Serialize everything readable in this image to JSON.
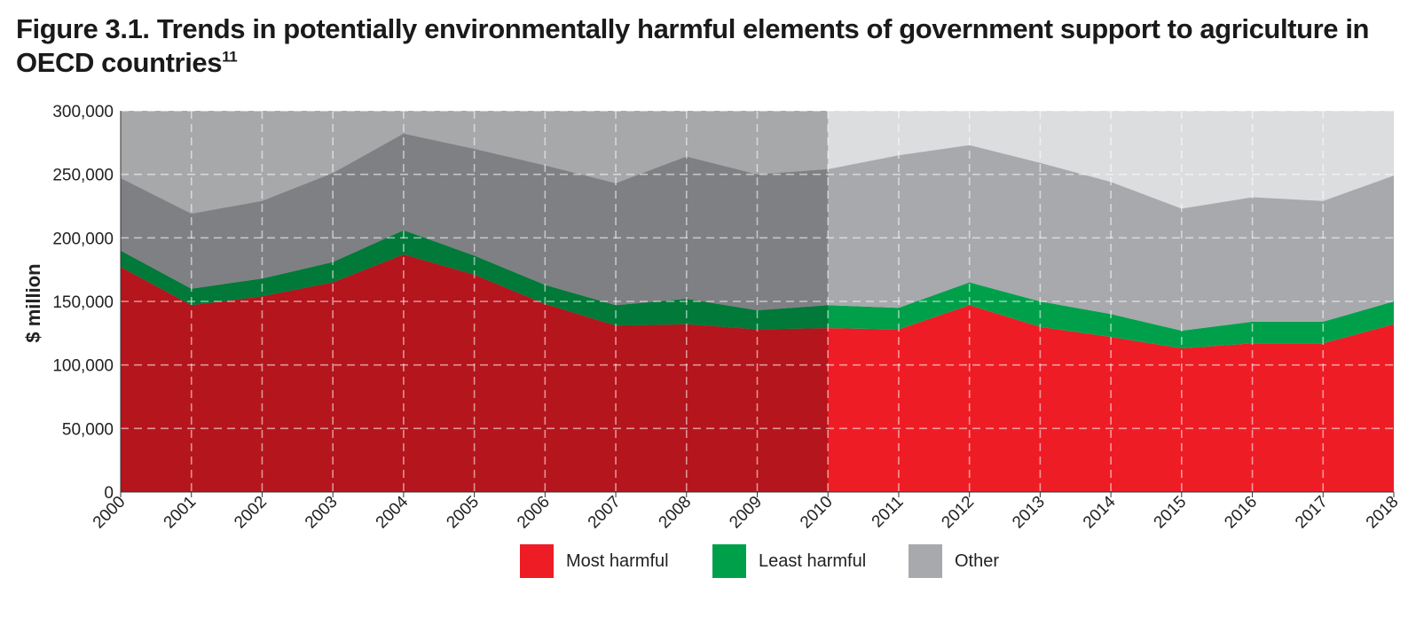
{
  "title": "Figure 3.1. Trends in potentially environmentally harmful elements of government support to agriculture in OECD countries",
  "title_superscript": "11",
  "colors": {
    "most_harmful": "#ee1c25",
    "least_harmful": "#00a04b",
    "other": "#a7a9ac",
    "background": "#dcdddf"
  },
  "chart_data": {
    "type": "area",
    "stacked": true,
    "ylabel": "$ million",
    "xlabel": "",
    "ylim": [
      0,
      300000
    ],
    "y_ticks": [
      0,
      50000,
      100000,
      150000,
      200000,
      250000,
      300000
    ],
    "y_tick_labels": [
      "0",
      "50,000",
      "100,000",
      "150,000",
      "200,000",
      "250,000",
      "300,000"
    ],
    "x": [
      "2000",
      "2001",
      "2002",
      "2003",
      "2004",
      "2005",
      "2006",
      "2007",
      "2008",
      "2009",
      "2010",
      "2011",
      "2012",
      "2013",
      "2014",
      "2015",
      "2016",
      "2017",
      "2018"
    ],
    "shaded_period": [
      "2000",
      "2010"
    ],
    "grid": true,
    "series": [
      {
        "name": "Most harmful",
        "color": "#ee1c25",
        "values": [
          177000,
          147000,
          154000,
          165000,
          187000,
          171000,
          148000,
          131000,
          132000,
          128000,
          129000,
          128000,
          147000,
          130000,
          122000,
          113000,
          117000,
          117000,
          132000
        ]
      },
      {
        "name": "Least harmful",
        "color": "#00a04b",
        "values": [
          13000,
          13000,
          14000,
          16000,
          19000,
          15000,
          15000,
          16000,
          20000,
          15000,
          18000,
          17000,
          18000,
          20000,
          18000,
          14000,
          17000,
          17000,
          18000
        ]
      },
      {
        "name": "Other",
        "color": "#a7a9ac",
        "values": [
          57000,
          59000,
          61000,
          70000,
          76000,
          84000,
          94000,
          96000,
          112000,
          107000,
          107000,
          120000,
          108000,
          109000,
          104000,
          96000,
          98000,
          95000,
          99000
        ]
      }
    ],
    "legend": [
      "Most harmful",
      "Least harmful",
      "Other"
    ],
    "legend_position": "bottom"
  }
}
